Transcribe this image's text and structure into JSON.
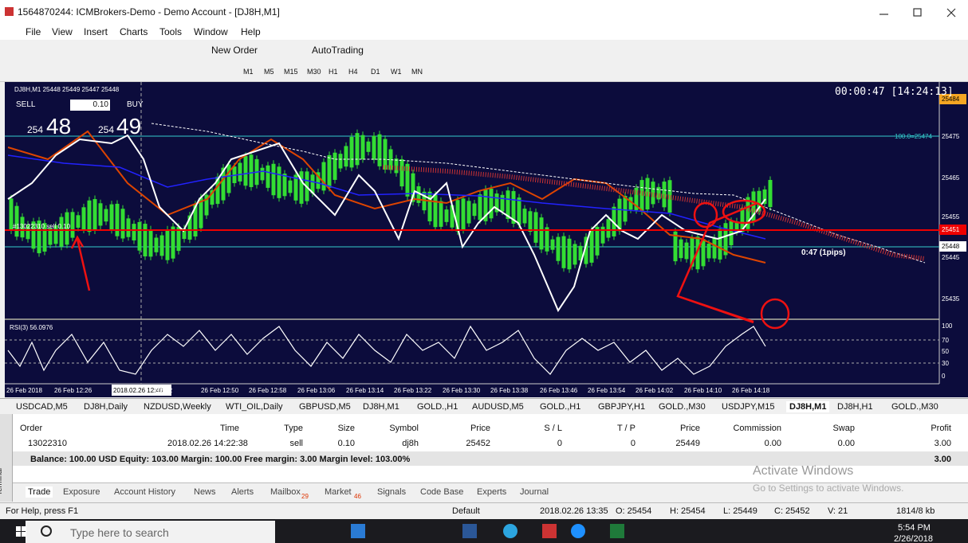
{
  "window": {
    "title": "1564870244: ICMBrokers-Demo - Demo Account - [DJ8H,M1]"
  },
  "menu": [
    "File",
    "View",
    "Insert",
    "Charts",
    "Tools",
    "Window",
    "Help"
  ],
  "toolbar": {
    "new_order": "New Order",
    "autotrading": "AutoTrading",
    "timeframes": [
      "M1",
      "M5",
      "M15",
      "M30",
      "H1",
      "H4",
      "D1",
      "W1",
      "MN"
    ]
  },
  "chart": {
    "info": "DJ8H,M1  25448 25449 25447 25448",
    "sell": "SELL",
    "buy": "BUY",
    "lot": "0.10",
    "bid_prefix": "254",
    "bid": "48",
    "ask_prefix": "254",
    "ask": "49",
    "timer": "00:00:47 [14:24:13]",
    "order_line": "#13022310 sell 0.10",
    "level_label": "100.0=25474",
    "pips": "0:47 (1pips)",
    "price_levels": [
      "25475",
      "25465",
      "25455",
      "25445",
      "25435"
    ],
    "price_tags": [
      "25484",
      "25451",
      "25448"
    ],
    "rsi_label": "RSI(3) 56.0976",
    "rsi_levels": [
      "100",
      "70",
      "50",
      "30",
      "0"
    ],
    "time_labels": [
      "26 Feb 2018",
      "26 Feb 12:26",
      "2018.02.26 12:40",
      "12:42",
      "26 Feb 12:50",
      "26 Feb 12:58",
      "26 Feb 13:06",
      "26 Feb 13:14",
      "26 Feb 13:22",
      "26 Feb 13:30",
      "26 Feb 13:38",
      "26 Feb 13:46",
      "26 Feb 13:54",
      "26 Feb 14:02",
      "26 Feb 14:10",
      "26 Feb 14:18"
    ]
  },
  "chart_tabs": [
    "USDCAD,M5",
    "DJ8H,Daily",
    "NZDUSD,Weekly",
    "WTI_OIL,Daily",
    "GBPUSD,M5",
    "DJ8H,M1",
    "GOLD.,H1",
    "AUDUSD,M5",
    "GOLD.,H1",
    "GBPJPY,H1",
    "GOLD.,M30",
    "USDJPY,M15",
    "DJ8H,M1",
    "DJ8H,H1",
    "GOLD.,M30"
  ],
  "terminal": {
    "label": "Terminal",
    "columns": [
      "Order",
      "Time",
      "Type",
      "Size",
      "Symbol",
      "Price",
      "S / L",
      "T / P",
      "Price",
      "Commission",
      "Swap",
      "Profit"
    ],
    "row": [
      "13022310",
      "2018.02.26 14:22:38",
      "sell",
      "0.10",
      "dj8h",
      "25452",
      "0",
      "0",
      "25449",
      "0.00",
      "0.00",
      "3.00"
    ],
    "balance": "Balance: 100.00 USD  Equity: 103.00  Margin: 100.00  Free margin: 3.00  Margin level: 103.00%",
    "balance_profit": "3.00",
    "tabs": [
      "Trade",
      "Exposure",
      "Account History",
      "News",
      "Alerts",
      "Mailbox",
      "Market",
      "Signals",
      "Code Base",
      "Experts",
      "Journal"
    ],
    "mailbox_count": "29",
    "market_count": "46"
  },
  "status": [
    "For Help, press F1",
    "Default",
    "2018.02.26 13:35",
    "O: 25454",
    "H: 25454",
    "L: 25449",
    "C: 25452",
    "V: 21",
    "1814/8 kb"
  ],
  "watermark": [
    "Activate Windows",
    "Go to Settings to activate Windows."
  ],
  "taskbar": {
    "search": "Type here to search",
    "time": "5:54 PM",
    "date": "2/26/2018"
  }
}
